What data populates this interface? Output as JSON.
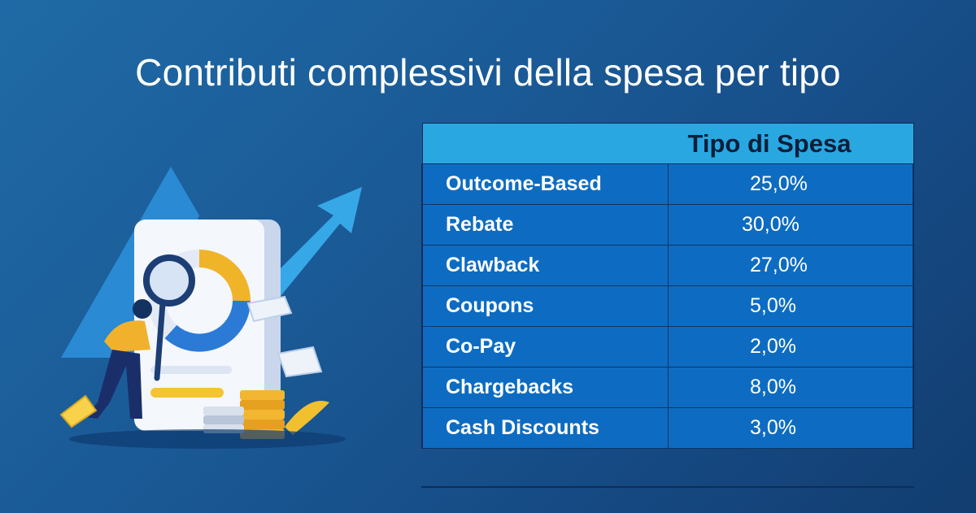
{
  "title": "Contributi complessivi della spesa per tipo",
  "colors": {
    "background": "#1a5a96",
    "header": "#29a7e1",
    "row": "#0d6cc1",
    "text": "#ffffff"
  },
  "illustration": {
    "description_icon": "analytics-magnifier-illustration"
  },
  "chart_data": {
    "type": "table",
    "title": "Contributi complessivi della spesa per tipo",
    "columns": [
      "",
      "Tipo di Spesa"
    ],
    "rows": [
      {
        "category": "Outcome-Based",
        "value": "25,0%"
      },
      {
        "category": "Rebate",
        "value": "30,0%"
      },
      {
        "category": "Clawback",
        "value": "27,0%"
      },
      {
        "category": "Coupons",
        "value": "5,0%"
      },
      {
        "category": "Co-Pay",
        "value": "2,0%"
      },
      {
        "category": "Chargebacks",
        "value": "8,0%"
      },
      {
        "category": "Cash Discounts",
        "value": "3,0%"
      }
    ],
    "values": [
      25.0,
      30.0,
      27.0,
      5.0,
      2.0,
      8.0,
      3.0
    ],
    "categories": [
      "Outcome-Based",
      "Rebate",
      "Clawback",
      "Coupons",
      "Co-Pay",
      "Chargebacks",
      "Cash Discounts"
    ]
  }
}
